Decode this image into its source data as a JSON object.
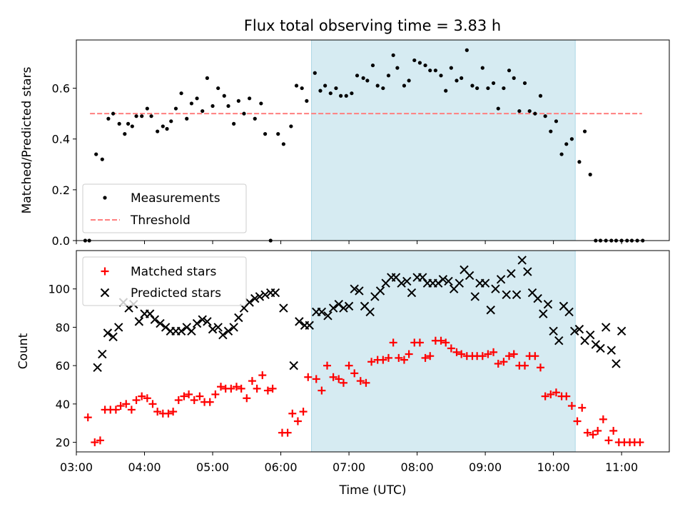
{
  "chart_data": {
    "type": "scatter",
    "title": "Flux total observing time = 3.83 h",
    "xlabel": "Time (UTC)",
    "xlim": [
      3.0,
      11.7
    ],
    "xticks": [
      {
        "v": 3.0,
        "label": "03:00"
      },
      {
        "v": 4.0,
        "label": "04:00"
      },
      {
        "v": 5.0,
        "label": "05:00"
      },
      {
        "v": 6.0,
        "label": "06:00"
      },
      {
        "v": 7.0,
        "label": "07:00"
      },
      {
        "v": 8.0,
        "label": "08:00"
      },
      {
        "v": 9.0,
        "label": "09:00"
      },
      {
        "v": 10.0,
        "label": "10:00"
      },
      {
        "v": 11.0,
        "label": "11:00"
      }
    ],
    "highlight": {
      "x_start": 6.45,
      "x_end": 10.32,
      "color": "#add8e6"
    },
    "panels": [
      {
        "ylabel": "Matched/Predicted stars",
        "ylim": [
          0,
          0.79
        ],
        "yticks": [
          {
            "v": 0.0,
            "label": "0.0"
          },
          {
            "v": 0.2,
            "label": "0.2"
          },
          {
            "v": 0.4,
            "label": "0.4"
          },
          {
            "v": 0.6,
            "label": "0.6"
          }
        ],
        "legend_position": "lower-left",
        "series": [
          {
            "name": "Measurements",
            "kind": "dot",
            "color": "#000000",
            "x": [
              3.13,
              3.19,
              3.29,
              3.38,
              3.47,
              3.54,
              3.63,
              3.71,
              3.76,
              3.82,
              3.88,
              3.96,
              4.04,
              4.1,
              4.19,
              4.27,
              4.33,
              4.39,
              4.46,
              4.54,
              4.62,
              4.69,
              4.77,
              4.85,
              4.92,
              5.0,
              5.08,
              5.17,
              5.23,
              5.31,
              5.38,
              5.46,
              5.54,
              5.62,
              5.71,
              5.77,
              5.85,
              5.96,
              6.04,
              6.15,
              6.23,
              6.31,
              6.38,
              6.5,
              6.58,
              6.65,
              6.73,
              6.81,
              6.88,
              6.96,
              7.04,
              7.12,
              7.21,
              7.27,
              7.35,
              7.42,
              7.5,
              7.58,
              7.65,
              7.71,
              7.81,
              7.88,
              7.96,
              8.04,
              8.12,
              8.19,
              8.27,
              8.35,
              8.42,
              8.5,
              8.58,
              8.65,
              8.73,
              8.81,
              8.88,
              8.96,
              9.04,
              9.12,
              9.19,
              9.27,
              9.35,
              9.42,
              9.5,
              9.58,
              9.65,
              9.73,
              9.81,
              9.88,
              9.96,
              10.04,
              10.12,
              10.19,
              10.27,
              10.38,
              10.46,
              10.54,
              10.62,
              10.69,
              10.77,
              10.85,
              10.92,
              11.0,
              11.08,
              11.15,
              11.23,
              11.31
            ],
            "y": [
              0.0,
              0.0,
              0.34,
              0.32,
              0.48,
              0.5,
              0.46,
              0.42,
              0.46,
              0.45,
              0.49,
              0.49,
              0.52,
              0.49,
              0.43,
              0.45,
              0.44,
              0.47,
              0.52,
              0.58,
              0.48,
              0.54,
              0.56,
              0.51,
              0.64,
              0.53,
              0.6,
              0.57,
              0.53,
              0.46,
              0.55,
              0.5,
              0.56,
              0.48,
              0.54,
              0.42,
              0.0,
              0.42,
              0.38,
              0.45,
              0.61,
              0.6,
              0.55,
              0.66,
              0.59,
              0.61,
              0.58,
              0.6,
              0.57,
              0.57,
              0.58,
              0.65,
              0.64,
              0.63,
              0.69,
              0.61,
              0.6,
              0.65,
              0.73,
              0.68,
              0.61,
              0.63,
              0.71,
              0.7,
              0.69,
              0.67,
              0.67,
              0.65,
              0.59,
              0.68,
              0.63,
              0.64,
              0.75,
              0.61,
              0.6,
              0.68,
              0.6,
              0.62,
              0.52,
              0.6,
              0.67,
              0.64,
              0.51,
              0.62,
              0.51,
              0.5,
              0.57,
              0.49,
              0.43,
              0.47,
              0.34,
              0.38,
              0.4,
              0.31,
              0.43,
              0.26,
              0.0,
              0.0,
              0.0,
              0.0,
              0.0,
              0.0,
              0.0,
              0.0,
              0.0,
              0.0
            ]
          },
          {
            "name": "Threshold",
            "kind": "hline",
            "color": "#ff7f7f",
            "y": 0.5,
            "x_start": 3.2,
            "x_end": 11.3
          }
        ]
      },
      {
        "ylabel": "Count",
        "ylim": [
          15,
          120
        ],
        "yticks": [
          {
            "v": 20,
            "label": "20"
          },
          {
            "v": 40,
            "label": "40"
          },
          {
            "v": 60,
            "label": "60"
          },
          {
            "v": 80,
            "label": "80"
          },
          {
            "v": 100,
            "label": "100"
          }
        ],
        "legend_position": "upper-left",
        "series": [
          {
            "name": "Matched stars",
            "kind": "plus",
            "color": "#ff0000",
            "x": [
              3.17,
              3.27,
              3.35,
              3.42,
              3.5,
              3.58,
              3.65,
              3.73,
              3.81,
              3.88,
              3.96,
              4.04,
              4.12,
              4.19,
              4.27,
              4.35,
              4.42,
              4.5,
              4.58,
              4.65,
              4.73,
              4.81,
              4.88,
              4.96,
              5.04,
              5.12,
              5.19,
              5.27,
              5.35,
              5.42,
              5.5,
              5.58,
              5.65,
              5.73,
              5.81,
              5.88,
              6.02,
              6.1,
              6.17,
              6.25,
              6.33,
              6.4,
              6.52,
              6.6,
              6.68,
              6.77,
              6.85,
              6.92,
              7.0,
              7.08,
              7.17,
              7.25,
              7.33,
              7.42,
              7.5,
              7.58,
              7.65,
              7.73,
              7.81,
              7.88,
              7.96,
              8.04,
              8.12,
              8.19,
              8.27,
              8.35,
              8.42,
              8.5,
              8.58,
              8.65,
              8.73,
              8.81,
              8.88,
              8.96,
              9.04,
              9.12,
              9.19,
              9.27,
              9.35,
              9.42,
              9.5,
              9.58,
              9.65,
              9.73,
              9.81,
              9.88,
              9.96,
              10.04,
              10.12,
              10.19,
              10.27,
              10.35,
              10.42,
              10.5,
              10.58,
              10.65,
              10.73,
              10.81,
              10.88,
              10.96,
              11.04,
              11.12,
              11.19,
              11.27
            ],
            "y": [
              33,
              20,
              21,
              37,
              37,
              37,
              39,
              40,
              37,
              42,
              44,
              43,
              40,
              36,
              35,
              35,
              36,
              42,
              44,
              45,
              42,
              44,
              41,
              41,
              45,
              49,
              48,
              48,
              49,
              48,
              43,
              52,
              48,
              55,
              47,
              48,
              25,
              25,
              35,
              31,
              36,
              54,
              53,
              47,
              60,
              54,
              53,
              51,
              60,
              56,
              52,
              51,
              62,
              63,
              63,
              64,
              72,
              64,
              63,
              66,
              72,
              72,
              64,
              65,
              73,
              73,
              72,
              69,
              67,
              66,
              65,
              65,
              65,
              65,
              66,
              67,
              61,
              62,
              65,
              66,
              60,
              60,
              65,
              65,
              59,
              44,
              45,
              46,
              44,
              44,
              39,
              31,
              38,
              25,
              24,
              26,
              32,
              21,
              26,
              20,
              20,
              20,
              20,
              20
            ]
          },
          {
            "name": "Predicted stars",
            "kind": "cross",
            "color": "#000000",
            "x": [
              3.31,
              3.38,
              3.46,
              3.54,
              3.62,
              3.69,
              3.77,
              3.84,
              3.92,
              4.0,
              4.08,
              4.15,
              4.23,
              4.31,
              4.38,
              4.46,
              4.54,
              4.62,
              4.69,
              4.77,
              4.85,
              4.92,
              5.0,
              5.08,
              5.15,
              5.23,
              5.31,
              5.38,
              5.46,
              5.54,
              5.62,
              5.69,
              5.77,
              5.85,
              5.92,
              6.04,
              6.19,
              6.27,
              6.35,
              6.42,
              6.52,
              6.6,
              6.69,
              6.77,
              6.85,
              6.92,
              7.0,
              7.08,
              7.15,
              7.23,
              7.31,
              7.38,
              7.46,
              7.54,
              7.62,
              7.69,
              7.77,
              7.85,
              7.92,
              8.0,
              8.08,
              8.15,
              8.23,
              8.31,
              8.38,
              8.46,
              8.54,
              8.62,
              8.69,
              8.77,
              8.85,
              8.92,
              9.0,
              9.08,
              9.15,
              9.23,
              9.31,
              9.38,
              9.46,
              9.54,
              9.62,
              9.69,
              9.77,
              9.85,
              9.92,
              10.0,
              10.08,
              10.15,
              10.23,
              10.31,
              10.38,
              10.46,
              10.54,
              10.62,
              10.69,
              10.77,
              10.85,
              10.92,
              11.0
            ],
            "y": [
              59,
              66,
              77,
              75,
              80,
              93,
              90,
              92,
              83,
              87,
              87,
              84,
              82,
              80,
              78,
              78,
              78,
              80,
              78,
              82,
              84,
              83,
              79,
              80,
              76,
              78,
              80,
              85,
              90,
              93,
              95,
              96,
              97,
              98,
              98,
              90,
              60,
              83,
              81,
              81,
              88,
              88,
              86,
              90,
              92,
              90,
              91,
              100,
              99,
              91,
              88,
              96,
              99,
              103,
              106,
              106,
              103,
              104,
              98,
              106,
              106,
              103,
              103,
              103,
              105,
              104,
              100,
              103,
              110,
              107,
              96,
              103,
              103,
              89,
              100,
              105,
              97,
              108,
              97,
              115,
              109,
              98,
              95,
              87,
              92,
              78,
              73,
              91,
              88,
              78,
              79,
              73,
              76,
              71,
              69,
              80,
              68,
              61,
              78
            ]
          }
        ]
      }
    ]
  }
}
